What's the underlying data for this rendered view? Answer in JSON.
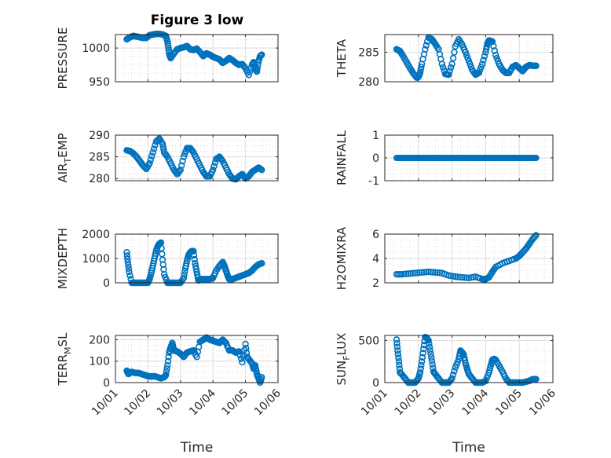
{
  "chart_data": [
    {
      "type": "scatter",
      "title": "Figure 3 low",
      "ylabel": "PRESSURE",
      "ylabel_sub": null,
      "ylim": [
        950,
        1020
      ],
      "yticks": [
        950,
        1000
      ],
      "x": [
        0.35,
        0.45,
        0.55,
        0.65,
        0.75,
        0.85,
        0.95,
        1.05,
        1.15,
        1.25,
        1.35,
        1.45,
        1.55,
        1.6,
        1.63,
        1.66,
        1.7,
        1.8,
        1.9,
        2.0,
        2.1,
        2.2,
        2.3,
        2.4,
        2.5,
        2.6,
        2.7,
        2.8,
        2.9,
        3.0,
        3.1,
        3.2,
        3.3,
        3.4,
        3.5,
        3.6,
        3.7,
        3.8,
        3.9,
        4.0,
        4.1,
        4.2,
        4.25,
        4.3,
        4.35,
        4.4,
        4.45,
        4.5
      ],
      "values": [
        1013,
        1016,
        1018,
        1017,
        1016,
        1015,
        1015,
        1019,
        1020,
        1021,
        1021,
        1020,
        1018,
        1010,
        1000,
        990,
        985,
        992,
        998,
        1000,
        1001,
        1003,
        998,
        997,
        999,
        994,
        988,
        992,
        990,
        987,
        985,
        983,
        978,
        981,
        985,
        982,
        978,
        975,
        976,
        970,
        960,
        975,
        979,
        970,
        965,
        980,
        988,
        990
      ],
      "xlim_days": [
        0,
        5
      ],
      "grid": true
    },
    {
      "type": "scatter",
      "ylabel": "THETA",
      "ylim": [
        280,
        288
      ],
      "yticks": [
        280,
        285
      ],
      "x": [
        0.35,
        0.45,
        0.55,
        0.65,
        0.75,
        0.85,
        0.95,
        1.0,
        1.05,
        1.1,
        1.2,
        1.3,
        1.4,
        1.5,
        1.6,
        1.7,
        1.8,
        1.9,
        2.0,
        2.1,
        2.2,
        2.3,
        2.4,
        2.5,
        2.6,
        2.7,
        2.8,
        2.9,
        3.0,
        3.05,
        3.1,
        3.2,
        3.3,
        3.4,
        3.5,
        3.6,
        3.7,
        3.8,
        3.9,
        4.0,
        4.1,
        4.2,
        4.3,
        4.4,
        4.5
      ],
      "values": [
        285.5,
        285.2,
        284.3,
        283.3,
        282.3,
        281.4,
        280.7,
        280.8,
        281.5,
        283,
        285.5,
        287.5,
        287.2,
        286.4,
        285.5,
        283,
        281.3,
        281.2,
        283,
        286,
        287.2,
        286.3,
        285,
        283.5,
        282,
        281.2,
        281.5,
        283,
        285,
        286.5,
        287,
        286.8,
        284.5,
        283,
        282,
        281.5,
        281.5,
        282.5,
        282.8,
        282.3,
        281.8,
        282.5,
        282.8,
        282.7,
        282.7
      ],
      "grid": true
    },
    {
      "type": "scatter",
      "ylabel": "AIR",
      "ylabel_sub": "T",
      "ylabel_rest": "EMP",
      "ylim": [
        279.5,
        290
      ],
      "yticks": [
        280,
        285,
        290
      ],
      "x": [
        0.35,
        0.45,
        0.55,
        0.65,
        0.75,
        0.85,
        0.95,
        1.05,
        1.15,
        1.25,
        1.35,
        1.45,
        1.5,
        1.6,
        1.7,
        1.8,
        1.9,
        2.0,
        2.1,
        2.2,
        2.3,
        2.4,
        2.5,
        2.6,
        2.7,
        2.8,
        2.9,
        3.0,
        3.1,
        3.2,
        3.3,
        3.4,
        3.5,
        3.6,
        3.7,
        3.8,
        3.9,
        4.0,
        4.1,
        4.2,
        4.3,
        4.4,
        4.5
      ],
      "values": [
        286.5,
        286.3,
        285.8,
        285.0,
        284.0,
        283.0,
        282.2,
        283.5,
        286,
        288.5,
        289.2,
        288,
        286,
        285,
        283.5,
        282,
        281,
        282,
        285,
        287,
        287,
        286,
        284.5,
        283,
        281.5,
        280.5,
        280.5,
        282,
        284.5,
        285,
        284,
        282.5,
        281,
        280,
        279.8,
        280.5,
        281,
        280,
        280.5,
        281.5,
        282,
        282.5,
        282
      ],
      "grid": true
    },
    {
      "type": "scatter",
      "ylabel": "RAINFALL",
      "ylim": [
        -1,
        1
      ],
      "yticks": [
        -1,
        0,
        1
      ],
      "x_range": [
        0.35,
        4.5
      ],
      "constant_value": 0,
      "grid": true
    },
    {
      "type": "scatter",
      "ylabel": "MIXDEPTH",
      "ylim": [
        0,
        2000
      ],
      "yticks": [
        0,
        1000,
        2000
      ],
      "x": [
        0.35,
        0.38,
        0.42,
        0.5,
        0.6,
        0.7,
        0.8,
        0.9,
        1.0,
        1.05,
        1.1,
        1.15,
        1.2,
        1.25,
        1.3,
        1.35,
        1.4,
        1.45,
        1.5,
        1.6,
        1.7,
        1.8,
        1.9,
        2.0,
        2.1,
        2.15,
        2.2,
        2.25,
        2.3,
        2.35,
        2.4,
        2.45,
        2.5,
        2.55,
        2.6,
        2.7,
        2.8,
        2.9,
        3.0,
        3.1,
        3.2,
        3.3,
        3.35,
        3.4,
        3.45,
        3.5,
        3.6,
        3.7,
        3.8,
        3.9,
        4.0,
        4.1,
        4.2,
        4.3,
        4.4,
        4.5
      ],
      "values": [
        1250,
        850,
        450,
        0,
        0,
        0,
        0,
        0,
        0,
        150,
        400,
        700,
        1000,
        1300,
        1500,
        1600,
        1650,
        950,
        350,
        0,
        0,
        0,
        0,
        0,
        200,
        600,
        900,
        1150,
        1250,
        1300,
        1300,
        800,
        450,
        100,
        150,
        150,
        150,
        150,
        200,
        500,
        700,
        850,
        700,
        500,
        300,
        150,
        150,
        200,
        250,
        300,
        350,
        400,
        500,
        650,
        750,
        800
      ],
      "grid": true
    },
    {
      "type": "scatter",
      "ylabel": "H2OMIXRA",
      "ylim": [
        2,
        6
      ],
      "yticks": [
        2,
        4,
        6
      ],
      "x": [
        0.35,
        0.5,
        0.7,
        0.9,
        1.1,
        1.3,
        1.5,
        1.7,
        1.9,
        2.1,
        2.3,
        2.5,
        2.7,
        2.9,
        3.0,
        3.1,
        3.2,
        3.3,
        3.5,
        3.7,
        3.9,
        4.0,
        4.1,
        4.2,
        4.3,
        4.4,
        4.5
      ],
      "values": [
        2.7,
        2.7,
        2.75,
        2.8,
        2.85,
        2.9,
        2.85,
        2.8,
        2.6,
        2.5,
        2.45,
        2.4,
        2.5,
        2.3,
        2.3,
        2.45,
        2.9,
        3.3,
        3.6,
        3.8,
        4.0,
        4.2,
        4.5,
        4.8,
        5.2,
        5.6,
        5.9
      ],
      "grid": true
    },
    {
      "type": "scatter",
      "ylabel": "TERR",
      "ylabel_sub": "M",
      "ylabel_rest": "SL",
      "ylim": [
        0,
        220
      ],
      "yticks": [
        0,
        100,
        200
      ],
      "xlabel": "Time",
      "xticklabels": [
        "10/01",
        "10/02",
        "10/03",
        "10/04",
        "10/05",
        "10/06"
      ],
      "x": [
        0.35,
        0.4,
        0.5,
        0.6,
        0.7,
        0.8,
        0.9,
        1.0,
        1.1,
        1.2,
        1.3,
        1.4,
        1.5,
        1.55,
        1.6,
        1.65,
        1.7,
        1.75,
        1.8,
        1.9,
        2.0,
        2.1,
        2.2,
        2.3,
        2.4,
        2.5,
        2.6,
        2.7,
        2.8,
        2.9,
        3.0,
        3.1,
        3.2,
        3.3,
        3.4,
        3.5,
        3.6,
        3.7,
        3.8,
        3.9,
        4.0,
        4.05,
        4.1,
        4.2,
        4.25,
        4.3,
        4.35,
        4.4,
        4.45,
        4.5
      ],
      "values": [
        55,
        40,
        50,
        45,
        45,
        40,
        35,
        30,
        28,
        30,
        25,
        20,
        25,
        35,
        80,
        140,
        165,
        185,
        150,
        145,
        135,
        120,
        140,
        145,
        150,
        120,
        190,
        200,
        210,
        200,
        195,
        190,
        185,
        200,
        185,
        150,
        150,
        140,
        145,
        95,
        180,
        120,
        110,
        90,
        65,
        80,
        40,
        20,
        0,
        25
      ],
      "grid": true
    },
    {
      "type": "scatter",
      "ylabel": "SUN",
      "ylabel_sub": "F",
      "ylabel_rest": "LUX",
      "ylim": [
        0,
        560
      ],
      "yticks": [
        0,
        500
      ],
      "xlabel": "Time",
      "xticklabels": [
        "10/01",
        "10/02",
        "10/03",
        "10/04",
        "10/05",
        "10/06"
      ],
      "x": [
        0.35,
        0.38,
        0.42,
        0.45,
        0.5,
        0.6,
        0.7,
        0.8,
        0.9,
        1.0,
        1.05,
        1.1,
        1.15,
        1.2,
        1.25,
        1.3,
        1.35,
        1.4,
        1.45,
        1.5,
        1.6,
        1.7,
        1.8,
        1.9,
        2.0,
        2.1,
        2.2,
        2.25,
        2.3,
        2.35,
        2.4,
        2.45,
        2.5,
        2.6,
        2.7,
        2.8,
        2.9,
        3.0,
        3.1,
        3.15,
        3.2,
        3.25,
        3.3,
        3.4,
        3.5,
        3.6,
        3.7,
        3.8,
        3.9,
        4.0,
        4.1,
        4.2,
        4.3,
        4.4,
        4.5
      ],
      "values": [
        510,
        380,
        250,
        120,
        100,
        50,
        0,
        0,
        0,
        50,
        120,
        250,
        400,
        540,
        530,
        500,
        380,
        260,
        130,
        100,
        50,
        0,
        0,
        0,
        50,
        180,
        280,
        380,
        360,
        330,
        230,
        160,
        100,
        50,
        0,
        0,
        0,
        20,
        120,
        200,
        270,
        280,
        270,
        200,
        130,
        50,
        0,
        0,
        0,
        0,
        0,
        10,
        20,
        40,
        40
      ],
      "grid": true
    }
  ]
}
